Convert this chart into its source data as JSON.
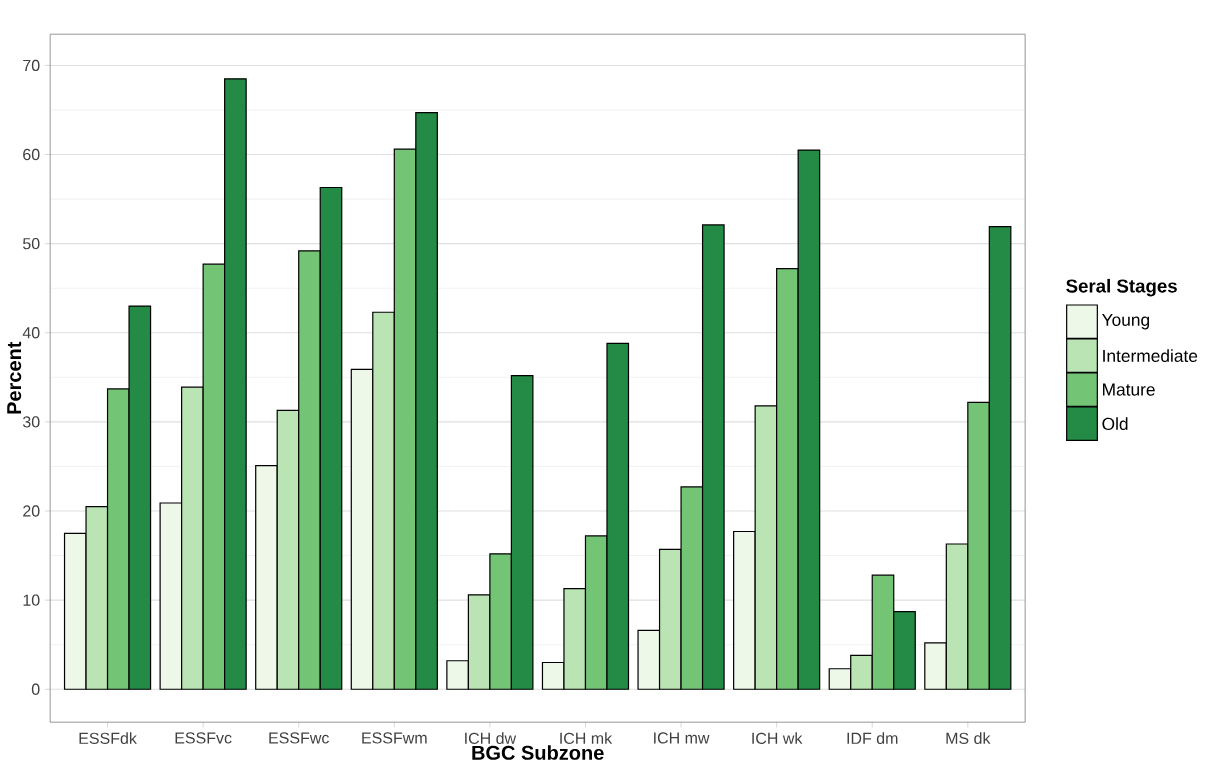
{
  "chart_data": {
    "type": "bar",
    "xlabel": "BGC Subzone",
    "ylabel": "Percent",
    "legend_title": "Seral Stages",
    "categories": [
      "ESSFdk",
      "ESSFvc",
      "ESSFwc",
      "ESSFwm",
      "ICH dw",
      "ICH mk",
      "ICH mw",
      "ICH wk",
      "IDF dm",
      "MS  dk"
    ],
    "series": [
      {
        "name": "Young",
        "color": "#edf8e9",
        "values": [
          17.5,
          20.9,
          25.1,
          35.9,
          3.2,
          3.0,
          6.6,
          17.7,
          2.3,
          5.2
        ]
      },
      {
        "name": "Intermediate",
        "color": "#bae4b3",
        "values": [
          20.5,
          33.9,
          31.3,
          42.3,
          10.6,
          11.3,
          15.7,
          31.8,
          3.8,
          16.3
        ]
      },
      {
        "name": "Mature",
        "color": "#74c476",
        "values": [
          33.7,
          47.7,
          49.2,
          60.6,
          15.2,
          17.2,
          22.7,
          47.2,
          12.8,
          32.2
        ]
      },
      {
        "name": "Old",
        "color": "#238b45",
        "values": [
          43.0,
          68.5,
          56.3,
          64.7,
          35.2,
          38.8,
          52.1,
          60.5,
          8.7,
          51.9
        ]
      }
    ],
    "ylim": [
      -3.7,
      73.5
    ],
    "yticks": [
      0,
      10,
      20,
      30,
      40,
      50,
      60,
      70
    ],
    "grid": "y",
    "legend": "right"
  }
}
